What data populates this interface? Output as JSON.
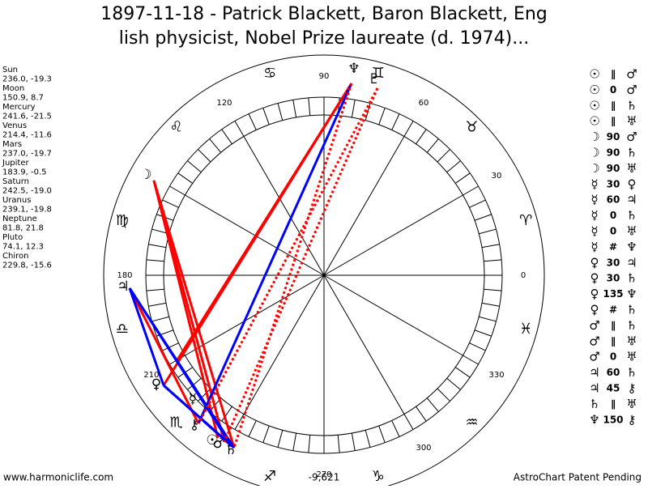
{
  "header": {
    "title_lines": [
      "1897-11-18 - Patrick Blackett, Baron Blackett, Eng",
      "lish physicist, Nobel Prize laureate (d. 1974)..."
    ]
  },
  "planets": [
    {
      "name": "Sun",
      "position": "236.0, -19.3"
    },
    {
      "name": "Moon",
      "position": "150.9, 8.7"
    },
    {
      "name": "Mercury",
      "position": "241.6, -21.5"
    },
    {
      "name": "Venus",
      "position": "214.4, -11.6"
    },
    {
      "name": "Mars",
      "position": "237.0, -19.7"
    },
    {
      "name": "Jupiter",
      "position": "183.9, -0.5"
    },
    {
      "name": "Saturn",
      "position": "242.5, -19.0"
    },
    {
      "name": "Uranus",
      "position": "239.1, -19.8"
    },
    {
      "name": "Neptune",
      "position": "81.8, 21.8"
    },
    {
      "name": "Pluto",
      "position": "74.1, 12.3"
    },
    {
      "name": "Chiron",
      "position": "229.8, -15.6"
    }
  ],
  "wheel": {
    "degree_labels": [
      "0",
      "30",
      "60",
      "90",
      "120",
      "180",
      "210",
      "270",
      "300",
      "330"
    ],
    "signs": [
      "♈",
      "♉",
      "♊",
      "♋",
      "♌",
      "♍",
      "♎",
      "♏",
      "♐",
      "♑",
      "♒",
      "♓"
    ],
    "planet_glyphs": [
      "♆",
      "♇",
      "♃",
      "♀",
      "☿",
      "⚷",
      "☉",
      "♂",
      "♄",
      "☽"
    ]
  },
  "aspects": [
    [
      "☉",
      "∥",
      "♂"
    ],
    [
      "☉",
      "0",
      "♂"
    ],
    [
      "☉",
      "∥",
      "♄"
    ],
    [
      "☉",
      "∥",
      "♅"
    ],
    [
      "☽",
      "90",
      "♂"
    ],
    [
      "☽",
      "90",
      "♄"
    ],
    [
      "☽",
      "90",
      "♅"
    ],
    [
      "☿",
      "30",
      "♀"
    ],
    [
      "☿",
      "60",
      "♃"
    ],
    [
      "☿",
      "0",
      "♄"
    ],
    [
      "☿",
      "0",
      "♅"
    ],
    [
      "☿",
      "#",
      "♆"
    ],
    [
      "♀",
      "30",
      "♃"
    ],
    [
      "♀",
      "30",
      "♄"
    ],
    [
      "♀",
      "135",
      "♆"
    ],
    [
      "♀",
      "#",
      "♄"
    ],
    [
      "♂",
      "∥",
      "♄"
    ],
    [
      "♂",
      "∥",
      "♅"
    ],
    [
      "♂",
      "0",
      "♅"
    ],
    [
      "♃",
      "60",
      "♄"
    ],
    [
      "♃",
      "45",
      "⚷"
    ],
    [
      "♄",
      "∥",
      "♅"
    ],
    [
      "♆",
      "150",
      "⚷"
    ]
  ],
  "footer": {
    "site": "www.harmoniclife.com",
    "center": "-9,621",
    "right": "AstroChart Patent Pending"
  }
}
